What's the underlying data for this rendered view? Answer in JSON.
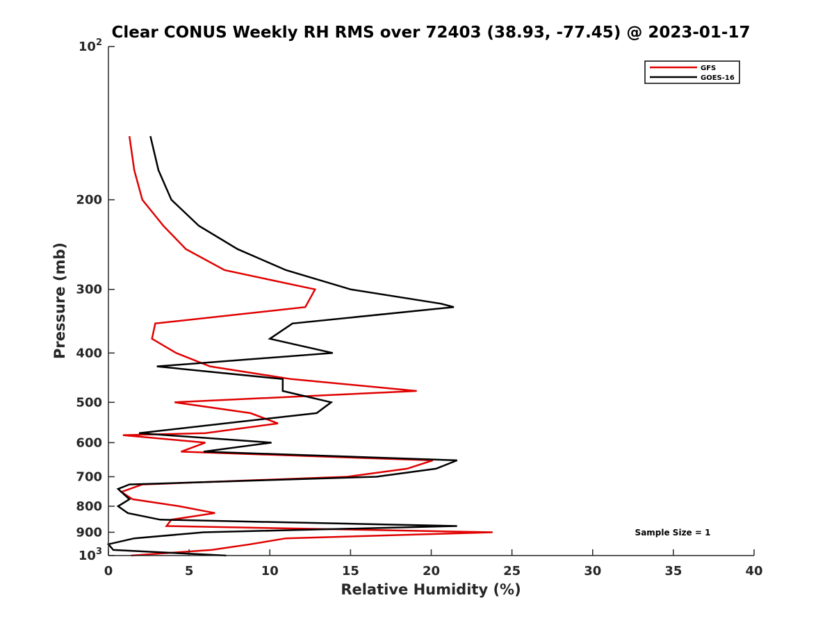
{
  "chart_data": {
    "type": "line",
    "title": "Clear CONUS Weekly RH RMS over 72403 (38.93, -77.45) @ 2023-01-17",
    "xlabel": "Relative Humidity (%)",
    "ylabel": "Pressure (mb)",
    "xlim": [
      0,
      40
    ],
    "ylim": [
      100,
      1000
    ],
    "y_scale": "log",
    "y_reversed": true,
    "grid": false,
    "legend_location": "top-right",
    "x_ticks": [
      0,
      5,
      10,
      15,
      20,
      25,
      30,
      35,
      40
    ],
    "x_tick_labels": [
      "0",
      "5",
      "10",
      "15",
      "20",
      "25",
      "30",
      "35",
      "40"
    ],
    "y_ticks": [
      100,
      200,
      300,
      400,
      500,
      600,
      700,
      800,
      900,
      1000
    ],
    "y_tick_labels": [
      {
        "base": "10",
        "exp": "2"
      },
      {
        "base": "200",
        "exp": ""
      },
      {
        "base": "300",
        "exp": ""
      },
      {
        "base": "400",
        "exp": ""
      },
      {
        "base": "500",
        "exp": ""
      },
      {
        "base": "600",
        "exp": ""
      },
      {
        "base": "700",
        "exp": ""
      },
      {
        "base": "800",
        "exp": ""
      },
      {
        "base": "900",
        "exp": ""
      },
      {
        "base": "10",
        "exp": "3"
      }
    ],
    "annotation": "Sample Size = 1",
    "series": [
      {
        "name": "GFS",
        "color": "#e00000",
        "points": [
          [
            1.3,
            150
          ],
          [
            1.6,
            175
          ],
          [
            2.1,
            200
          ],
          [
            3.4,
            225
          ],
          [
            4.8,
            250
          ],
          [
            7.2,
            275
          ],
          [
            12.8,
            300
          ],
          [
            12.2,
            325
          ],
          [
            2.9,
            350
          ],
          [
            2.7,
            375
          ],
          [
            4.2,
            400
          ],
          [
            6.3,
            425
          ],
          [
            11.3,
            450
          ],
          [
            19.1,
            475
          ],
          [
            4.1,
            500
          ],
          [
            8.8,
            525
          ],
          [
            10.5,
            550
          ],
          [
            6.0,
            575
          ],
          [
            0.9,
            580
          ],
          [
            6.0,
            600
          ],
          [
            4.5,
            625
          ],
          [
            20.1,
            650
          ],
          [
            18.5,
            675
          ],
          [
            14.8,
            700
          ],
          [
            2.1,
            725
          ],
          [
            0.8,
            750
          ],
          [
            1.5,
            775
          ],
          [
            4.4,
            800
          ],
          [
            6.6,
            825
          ],
          [
            3.9,
            850
          ],
          [
            3.6,
            875
          ],
          [
            23.8,
            900
          ],
          [
            11.0,
            925
          ],
          [
            8.8,
            950
          ],
          [
            6.4,
            975
          ],
          [
            1.4,
            1000
          ]
        ]
      },
      {
        "name": "GOES-16",
        "color": "#000000",
        "points": [
          [
            2.6,
            150
          ],
          [
            3.1,
            175
          ],
          [
            3.9,
            200
          ],
          [
            5.6,
            225
          ],
          [
            8.0,
            250
          ],
          [
            11.0,
            275
          ],
          [
            15.0,
            300
          ],
          [
            20.6,
            320
          ],
          [
            21.4,
            325
          ],
          [
            11.4,
            350
          ],
          [
            10.0,
            375
          ],
          [
            13.9,
            400
          ],
          [
            3.0,
            425
          ],
          [
            10.8,
            450
          ],
          [
            10.8,
            475
          ],
          [
            13.8,
            500
          ],
          [
            12.9,
            525
          ],
          [
            7.2,
            550
          ],
          [
            1.9,
            575
          ],
          [
            10.1,
            600
          ],
          [
            5.9,
            625
          ],
          [
            21.6,
            650
          ],
          [
            20.3,
            675
          ],
          [
            16.6,
            700
          ],
          [
            1.3,
            725
          ],
          [
            0.6,
            740
          ],
          [
            1.3,
            775
          ],
          [
            0.6,
            800
          ],
          [
            1.2,
            825
          ],
          [
            3.2,
            850
          ],
          [
            21.6,
            875
          ],
          [
            5.9,
            900
          ],
          [
            1.6,
            925
          ],
          [
            0.0,
            950
          ],
          [
            0.3,
            975
          ],
          [
            7.3,
            1000
          ]
        ]
      }
    ]
  }
}
